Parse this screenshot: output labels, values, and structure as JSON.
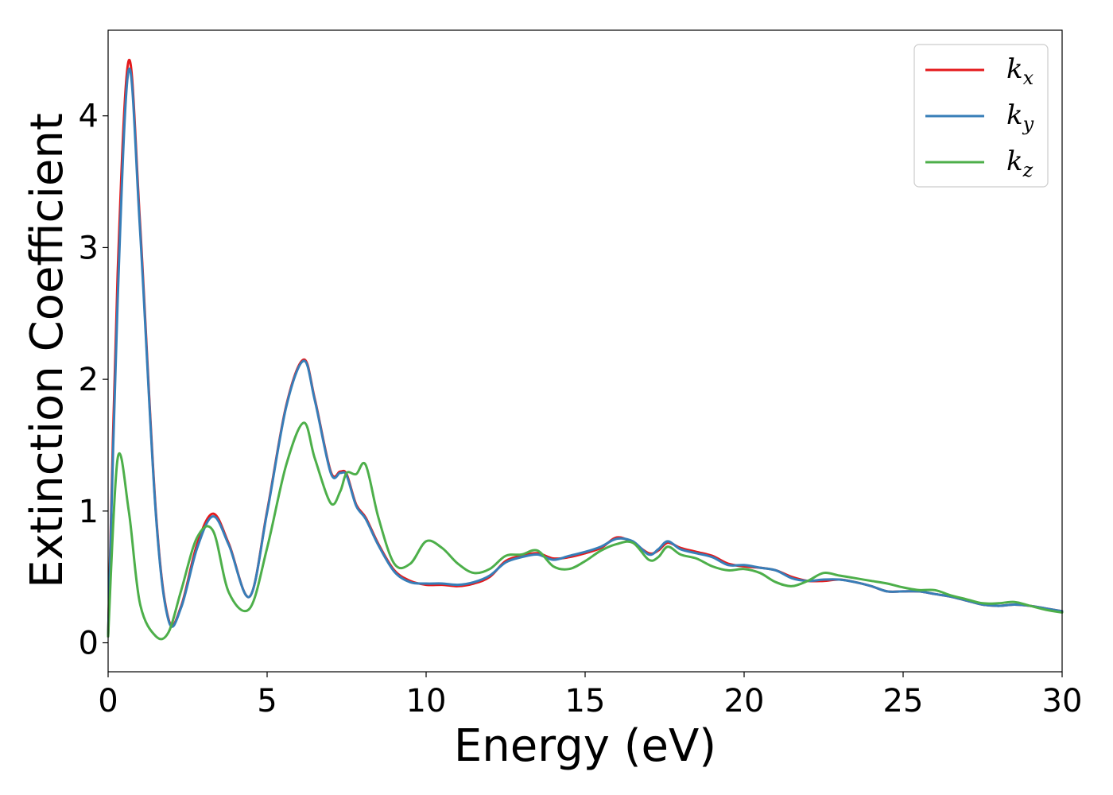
{
  "chart_data": {
    "type": "line",
    "xlabel": "Energy (eV)",
    "ylabel": "Extinction Coefficient",
    "xlim": [
      0,
      30
    ],
    "ylim": [
      -0.22,
      4.65
    ],
    "xticks": [
      "0",
      "5",
      "10",
      "15",
      "20",
      "25",
      "30"
    ],
    "yticks": [
      "0",
      "1",
      "2",
      "3",
      "4"
    ],
    "legend_position": "top-right",
    "grid": false,
    "x": [
      0,
      0.3,
      0.65,
      1.0,
      1.5,
      1.9,
      2.3,
      2.8,
      3.3,
      3.8,
      4.45,
      5.0,
      5.6,
      6.15,
      6.5,
      7.0,
      7.3,
      7.5,
      7.8,
      8.1,
      8.5,
      9.0,
      9.5,
      10.0,
      10.5,
      11.0,
      11.5,
      12.0,
      12.5,
      13.0,
      13.5,
      14.0,
      14.5,
      15.0,
      15.5,
      16.0,
      16.5,
      17.0,
      17.3,
      17.6,
      18.0,
      18.5,
      19.0,
      19.5,
      20.0,
      20.5,
      21.0,
      21.5,
      22.0,
      22.5,
      23.0,
      23.5,
      24.0,
      24.5,
      25.0,
      25.5,
      26.0,
      26.5,
      27.0,
      27.5,
      28.0,
      28.5,
      29.0,
      29.5,
      30.0
    ],
    "series": [
      {
        "name": "k",
        "subscript": "x",
        "color": "#e41a1c",
        "values": [
          0.05,
          2.8,
          4.42,
          3.2,
          1.0,
          0.18,
          0.28,
          0.75,
          0.98,
          0.75,
          0.35,
          1.0,
          1.8,
          2.15,
          1.85,
          1.3,
          1.3,
          1.28,
          1.05,
          0.95,
          0.75,
          0.55,
          0.47,
          0.44,
          0.44,
          0.43,
          0.45,
          0.5,
          0.62,
          0.66,
          0.68,
          0.64,
          0.65,
          0.68,
          0.72,
          0.8,
          0.76,
          0.68,
          0.7,
          0.76,
          0.72,
          0.69,
          0.66,
          0.6,
          0.58,
          0.57,
          0.55,
          0.5,
          0.47,
          0.47,
          0.48,
          0.46,
          0.43,
          0.39,
          0.39,
          0.39,
          0.37,
          0.35,
          0.32,
          0.29,
          0.28,
          0.29,
          0.28,
          0.26,
          0.24
        ]
      },
      {
        "name": "k",
        "subscript": "y",
        "color": "#377eb8",
        "values": [
          0.05,
          2.6,
          4.35,
          3.15,
          0.98,
          0.17,
          0.27,
          0.72,
          0.96,
          0.74,
          0.35,
          0.99,
          1.79,
          2.14,
          1.84,
          1.29,
          1.29,
          1.27,
          1.04,
          0.94,
          0.74,
          0.54,
          0.46,
          0.45,
          0.45,
          0.44,
          0.46,
          0.51,
          0.61,
          0.65,
          0.67,
          0.63,
          0.66,
          0.69,
          0.73,
          0.79,
          0.77,
          0.67,
          0.71,
          0.77,
          0.71,
          0.68,
          0.65,
          0.59,
          0.59,
          0.57,
          0.55,
          0.49,
          0.47,
          0.48,
          0.48,
          0.46,
          0.43,
          0.39,
          0.39,
          0.39,
          0.37,
          0.35,
          0.32,
          0.29,
          0.28,
          0.29,
          0.28,
          0.26,
          0.24
        ]
      },
      {
        "name": "k",
        "subscript": "z",
        "color": "#4daf4a",
        "values": [
          0.05,
          1.4,
          1.0,
          0.3,
          0.05,
          0.08,
          0.4,
          0.8,
          0.85,
          0.38,
          0.26,
          0.72,
          1.35,
          1.67,
          1.4,
          1.06,
          1.15,
          1.29,
          1.28,
          1.35,
          0.95,
          0.6,
          0.6,
          0.77,
          0.72,
          0.6,
          0.53,
          0.56,
          0.66,
          0.67,
          0.7,
          0.58,
          0.56,
          0.62,
          0.7,
          0.75,
          0.76,
          0.63,
          0.65,
          0.73,
          0.67,
          0.64,
          0.58,
          0.55,
          0.56,
          0.53,
          0.46,
          0.43,
          0.47,
          0.53,
          0.51,
          0.49,
          0.47,
          0.45,
          0.42,
          0.4,
          0.4,
          0.36,
          0.33,
          0.3,
          0.3,
          0.31,
          0.28,
          0.25,
          0.23
        ]
      }
    ]
  }
}
